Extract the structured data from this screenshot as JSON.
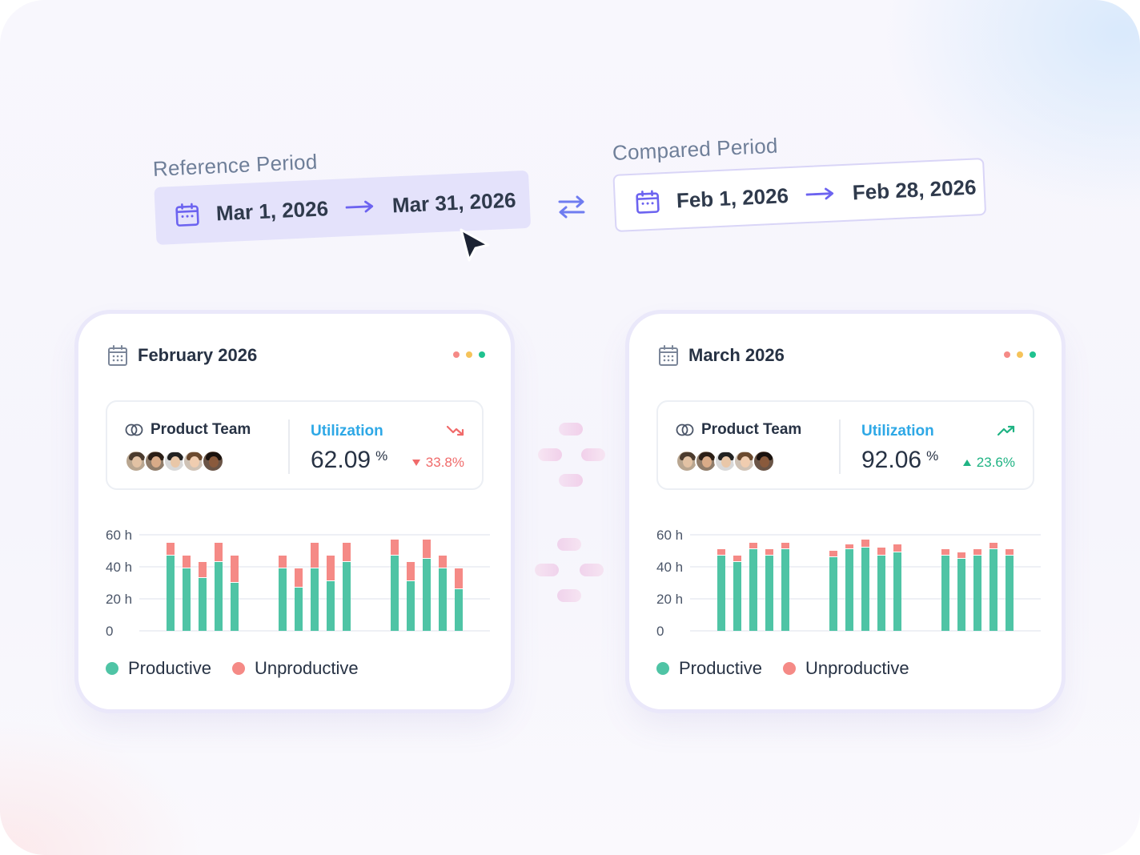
{
  "reference_period": {
    "label": "Reference Period",
    "start": "Mar 1, 2026",
    "end": "Mar 31, 2026"
  },
  "compared_period": {
    "label": "Compared Period",
    "start": "Feb 1, 2026",
    "end": "Feb 28, 2026"
  },
  "icons": {
    "calendar": "calendar-icon",
    "arrow": "arrow-right-icon",
    "swap": "swap-arrows-icon",
    "cursor": "mouse-pointer-icon",
    "team": "team-icon",
    "trend_down": "trend-down-icon",
    "trend_up": "trend-up-icon"
  },
  "colors": {
    "productive": "#4fc4a5",
    "unproductive": "#f58a86",
    "accent": "#6c63f0",
    "utilization": "#2ea8e6",
    "negative": "#f06a6a",
    "positive": "#1fb383",
    "window_dots": [
      "#f58a86",
      "#f5c35a",
      "#1fc28f"
    ]
  },
  "cards": [
    {
      "title": "February 2026",
      "team": "Product Team",
      "utilization_label": "Utilization",
      "utilization_value": "62.09",
      "utilization_unit": "%",
      "delta": "33.8%",
      "delta_direction": "down"
    },
    {
      "title": "March 2026",
      "team": "Product Team",
      "utilization_label": "Utilization",
      "utilization_value": "92.06",
      "utilization_unit": "%",
      "delta": "23.6%",
      "delta_direction": "up"
    }
  ],
  "legend": {
    "productive": "Productive",
    "unproductive": "Unproductive"
  },
  "chart_data": [
    {
      "type": "bar",
      "stacked": true,
      "title": "",
      "y_ticks": [
        "0",
        "20 h",
        "40 h",
        "60 h"
      ],
      "ylim": [
        0,
        60
      ],
      "groups": 3,
      "series": [
        {
          "name": "Productive",
          "values": [
            47,
            39,
            33,
            43,
            30,
            39,
            27,
            39,
            31,
            43,
            47,
            31,
            45,
            39,
            26
          ]
        },
        {
          "name": "Unproductive",
          "values": [
            8,
            8,
            10,
            12,
            17,
            8,
            12,
            16,
            16,
            12,
            10,
            12,
            12,
            8,
            13
          ]
        }
      ]
    },
    {
      "type": "bar",
      "stacked": true,
      "title": "",
      "y_ticks": [
        "0",
        "20 h",
        "40 h",
        "60 h"
      ],
      "ylim": [
        0,
        60
      ],
      "groups": 3,
      "series": [
        {
          "name": "Productive",
          "values": [
            47,
            43,
            51,
            47,
            51,
            46,
            51,
            52,
            47,
            49,
            47,
            45,
            47,
            51,
            47
          ]
        },
        {
          "name": "Unproductive",
          "values": [
            4,
            4,
            4,
            4,
            4,
            4,
            3,
            5,
            5,
            5,
            4,
            4,
            4,
            4,
            4
          ]
        }
      ]
    }
  ]
}
